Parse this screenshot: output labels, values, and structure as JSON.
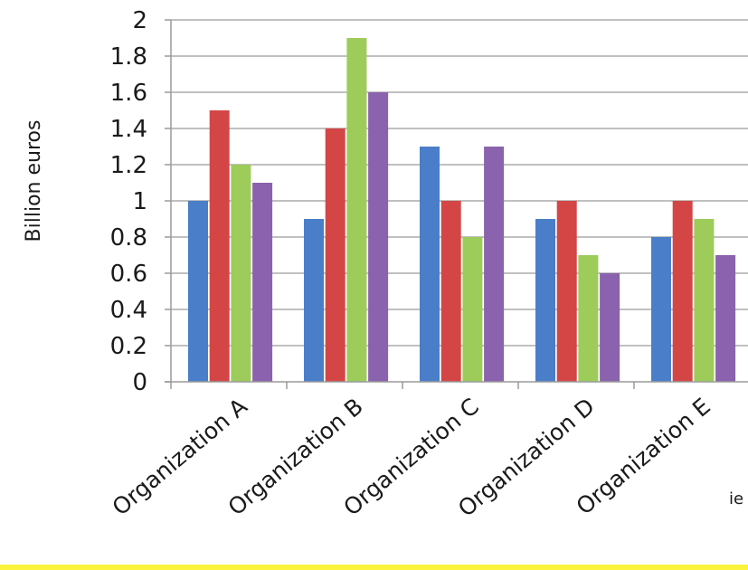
{
  "chart_data": {
    "type": "bar",
    "title": "",
    "xlabel": "",
    "ylabel": "Billion euros",
    "ylim": [
      0,
      2
    ],
    "yticks": [
      "0",
      "0.2",
      "0.4",
      "0.6",
      "0.8",
      "1",
      "1.2",
      "1.4",
      "1.6",
      "1.8",
      "2"
    ],
    "categories": [
      "Organization A",
      "Organization B",
      "Organization C",
      "Organization D",
      "Organization E"
    ],
    "series": [
      {
        "color": "#4a7ec9",
        "values": [
          1.0,
          0.9,
          1.3,
          0.9,
          0.8
        ]
      },
      {
        "color": "#d44646",
        "values": [
          1.5,
          1.4,
          1.0,
          1.0,
          1.0
        ]
      },
      {
        "color": "#9dcc5a",
        "values": [
          1.2,
          1.9,
          0.8,
          0.7,
          0.9
        ]
      },
      {
        "color": "#8a62ad",
        "values": [
          1.1,
          1.6,
          1.3,
          0.6,
          0.7
        ]
      }
    ],
    "grid": true,
    "legend": "none",
    "cropped_text": "ie"
  },
  "colors": {
    "gridline": "#9a9a9a",
    "axis": "#9a9a9a",
    "frame_edge": "#fcf43c"
  }
}
